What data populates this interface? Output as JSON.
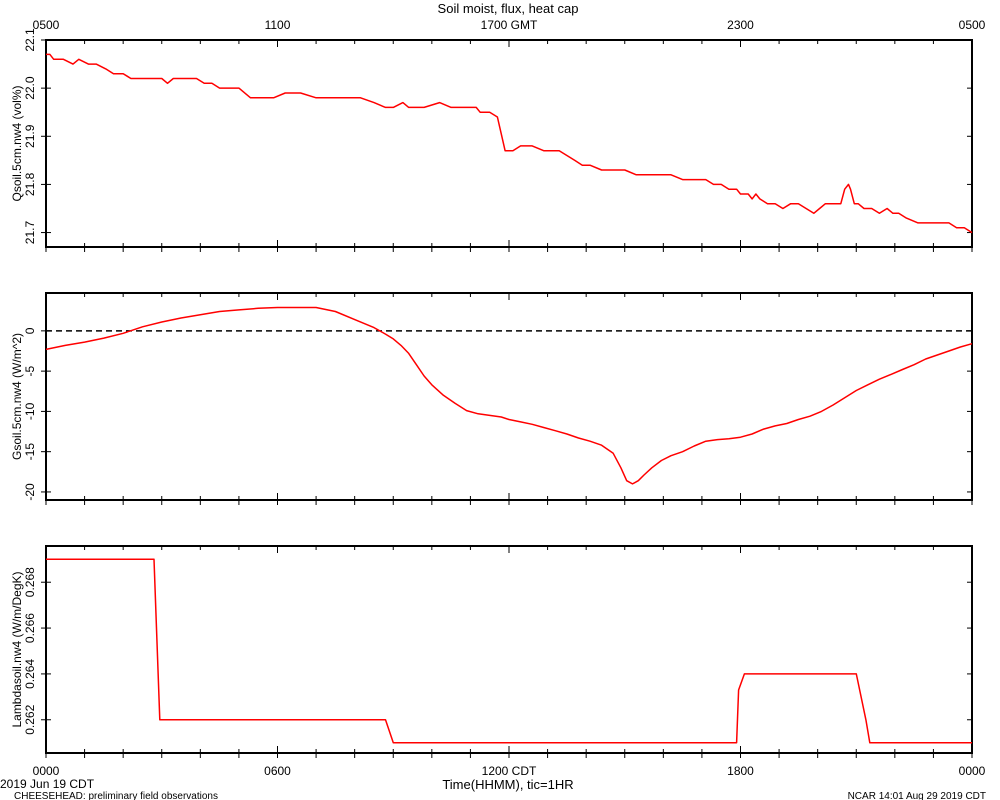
{
  "title": "Soil moist, flux, heat cap",
  "top_axis": {
    "ticks": [
      {
        "hours": 0,
        "label": "0500"
      },
      {
        "hours": 6,
        "label": "1100"
      },
      {
        "hours": 12,
        "label": "1700 GMT"
      },
      {
        "hours": 18,
        "label": "2300"
      },
      {
        "hours": 24,
        "label": "0500"
      }
    ]
  },
  "bottom_axis": {
    "ticks": [
      {
        "hours": 0,
        "label": "0000"
      },
      {
        "hours": 6,
        "label": "0600"
      },
      {
        "hours": 12,
        "label": "1200 CDT"
      },
      {
        "hours": 18,
        "label": "1800"
      },
      {
        "hours": 24,
        "label": "0000"
      }
    ],
    "xlabel": "Time(HHMM), tic=1HR",
    "date_label": "2019 Jun 19 CDT"
  },
  "footer": {
    "left": "CHEESEHEAD: preliminary field observations",
    "right": "NCAR 14:01 Aug 29 2019 CDT"
  },
  "colors": {
    "series": "#ff0000",
    "axis": "#000000",
    "zero_line": "#000000"
  },
  "chart_data": [
    {
      "type": "line",
      "ylabel": "Qsoil.5cm.nw4 (vol%)",
      "xlim": [
        0,
        24
      ],
      "ylim": [
        21.67,
        22.1
      ],
      "yticks": [
        21.7,
        21.8,
        21.9,
        22.0,
        22.1
      ],
      "ytick_labels": [
        "21.7",
        "21.8",
        "21.9",
        "22.0",
        "22.1"
      ],
      "grid": false,
      "x": [
        0,
        0.1,
        0.2,
        0.45,
        0.7,
        0.85,
        1.1,
        1.3,
        1.55,
        1.75,
        2.0,
        2.2,
        2.4,
        2.6,
        3.0,
        3.15,
        3.3,
        3.6,
        3.9,
        4.1,
        4.3,
        4.5,
        4.75,
        5.0,
        5.3,
        5.6,
        5.9,
        6.2,
        6.6,
        7.0,
        7.3,
        7.55,
        7.9,
        8.15,
        8.5,
        8.8,
        9.0,
        9.25,
        9.4,
        9.6,
        9.8,
        10.2,
        10.5,
        10.7,
        10.9,
        11.0,
        11.15,
        11.25,
        11.35,
        11.5,
        11.7,
        11.9,
        12.1,
        12.3,
        12.6,
        12.9,
        13.1,
        13.3,
        13.5,
        13.7,
        13.9,
        14.1,
        14.4,
        14.7,
        15.0,
        15.3,
        15.6,
        15.9,
        16.2,
        16.5,
        16.8,
        17.1,
        17.3,
        17.5,
        17.7,
        17.9,
        18.0,
        18.2,
        18.3,
        18.4,
        18.5,
        18.7,
        18.9,
        19.1,
        19.3,
        19.5,
        19.7,
        19.9,
        20.05,
        20.2,
        20.4,
        20.6,
        20.7,
        20.8,
        20.85,
        20.95,
        21.05,
        21.2,
        21.4,
        21.6,
        21.8,
        21.95,
        22.1,
        22.3,
        22.6,
        22.9,
        23.2,
        23.4,
        23.6,
        23.8,
        24.0
      ],
      "y": [
        22.07,
        22.07,
        22.06,
        22.06,
        22.05,
        22.06,
        22.05,
        22.05,
        22.04,
        22.03,
        22.03,
        22.02,
        22.02,
        22.02,
        22.02,
        22.01,
        22.02,
        22.02,
        22.02,
        22.01,
        22.01,
        22.0,
        22.0,
        22.0,
        21.98,
        21.98,
        21.98,
        21.99,
        21.99,
        21.98,
        21.98,
        21.98,
        21.98,
        21.98,
        21.97,
        21.96,
        21.96,
        21.97,
        21.96,
        21.96,
        21.96,
        21.97,
        21.96,
        21.96,
        21.96,
        21.96,
        21.96,
        21.95,
        21.95,
        21.95,
        21.94,
        21.87,
        21.87,
        21.88,
        21.88,
        21.87,
        21.87,
        21.87,
        21.86,
        21.85,
        21.84,
        21.84,
        21.83,
        21.83,
        21.83,
        21.82,
        21.82,
        21.82,
        21.82,
        21.81,
        21.81,
        21.81,
        21.8,
        21.8,
        21.79,
        21.79,
        21.78,
        21.78,
        21.77,
        21.78,
        21.77,
        21.76,
        21.76,
        21.75,
        21.76,
        21.76,
        21.75,
        21.74,
        21.75,
        21.76,
        21.76,
        21.76,
        21.79,
        21.8,
        21.79,
        21.76,
        21.76,
        21.75,
        21.75,
        21.74,
        21.75,
        21.74,
        21.74,
        21.73,
        21.72,
        21.72,
        21.72,
        21.72,
        21.71,
        21.71,
        21.7
      ]
    },
    {
      "type": "line",
      "ylabel": "Gsoil.5cm.nw4 (W/m^2)",
      "xlim": [
        0,
        24
      ],
      "ylim": [
        -21,
        4.7
      ],
      "yticks": [
        -20,
        -15,
        -10,
        -5,
        0
      ],
      "ytick_labels": [
        "-20",
        "-15",
        "-10",
        "-5",
        "0"
      ],
      "reference_line": {
        "y": 0,
        "style": "dashed"
      },
      "grid": false,
      "x": [
        0,
        0.5,
        1.0,
        1.5,
        2.0,
        2.5,
        3.0,
        3.5,
        4.0,
        4.5,
        5.0,
        5.5,
        6.0,
        6.5,
        7.0,
        7.5,
        8.0,
        8.5,
        8.8,
        9.0,
        9.2,
        9.4,
        9.6,
        9.8,
        10.0,
        10.3,
        10.6,
        10.9,
        11.2,
        11.5,
        11.8,
        12.0,
        12.3,
        12.6,
        12.9,
        13.2,
        13.5,
        13.8,
        14.1,
        14.4,
        14.7,
        14.9,
        15.05,
        15.2,
        15.35,
        15.5,
        15.7,
        15.95,
        16.2,
        16.5,
        16.8,
        17.1,
        17.4,
        17.7,
        18.0,
        18.3,
        18.6,
        18.9,
        19.2,
        19.5,
        19.8,
        20.1,
        20.4,
        20.7,
        21.0,
        21.3,
        21.6,
        21.9,
        22.2,
        22.5,
        22.8,
        23.1,
        23.4,
        23.7,
        24.0
      ],
      "y": [
        -2.3,
        -1.8,
        -1.4,
        -0.9,
        -0.3,
        0.5,
        1.1,
        1.6,
        2.0,
        2.4,
        2.6,
        2.8,
        2.9,
        2.9,
        2.9,
        2.4,
        1.4,
        0.4,
        -0.4,
        -1.0,
        -1.8,
        -2.8,
        -4.2,
        -5.6,
        -6.7,
        -8.0,
        -9.0,
        -9.9,
        -10.3,
        -10.5,
        -10.7,
        -11.0,
        -11.3,
        -11.6,
        -12.0,
        -12.4,
        -12.8,
        -13.3,
        -13.7,
        -14.2,
        -15.2,
        -17.0,
        -18.6,
        -19.0,
        -18.6,
        -17.9,
        -17.0,
        -16.1,
        -15.5,
        -15.0,
        -14.3,
        -13.7,
        -13.5,
        -13.4,
        -13.2,
        -12.8,
        -12.2,
        -11.8,
        -11.5,
        -11.0,
        -10.6,
        -10.0,
        -9.2,
        -8.3,
        -7.4,
        -6.7,
        -6.0,
        -5.4,
        -4.8,
        -4.2,
        -3.5,
        -3.0,
        -2.5,
        -2.0,
        -1.6
      ]
    },
    {
      "type": "line",
      "ylabel": "Lambdasoil.nw4 (W/m/DegK)",
      "xlim": [
        0,
        24
      ],
      "ylim": [
        0.26055,
        0.26958
      ],
      "yticks": [
        0.262,
        0.264,
        0.266,
        0.268
      ],
      "ytick_labels": [
        "0.262",
        "0.264",
        "0.266",
        "0.268"
      ],
      "grid": false,
      "x": [
        0,
        2.8,
        2.95,
        3.0,
        8.8,
        8.9,
        9.0,
        9.5,
        17.5,
        17.9,
        17.95,
        18.1,
        18.5,
        21.0,
        21.25,
        21.35,
        21.7,
        24.0
      ],
      "y": [
        0.269,
        0.269,
        0.262,
        0.262,
        0.262,
        0.2615,
        0.261,
        0.261,
        0.261,
        0.261,
        0.2633,
        0.264,
        0.264,
        0.264,
        0.262,
        0.261,
        0.261,
        0.261
      ]
    }
  ]
}
